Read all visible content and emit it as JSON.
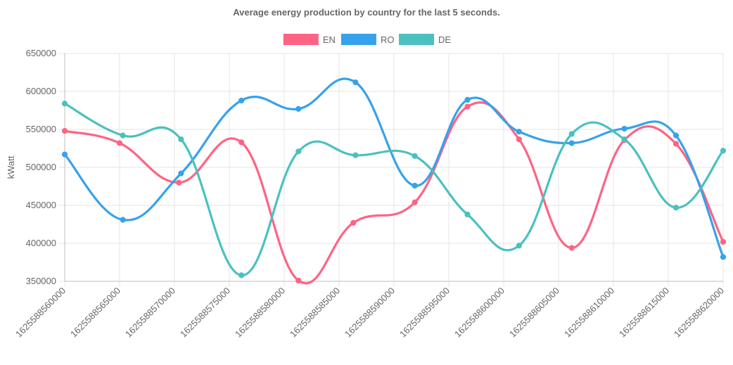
{
  "chart_data": {
    "type": "line",
    "title": "Average energy production by country for the last 5 seconds.",
    "xlabel": "",
    "ylabel": "kWatt",
    "x": [
      1625588560000,
      1625588565000,
      1625588570000,
      1625588575000,
      1625588580000,
      1625588585000,
      1625588590000,
      1625588595000,
      1625588600000,
      1625588605000,
      1625588610000,
      1625588615000,
      1625588620000
    ],
    "x_tick_labels": [
      "1625588560000",
      "1625588565000",
      "1625588570000",
      "1625588575000",
      "1625588580000",
      "1625588585000",
      "1625588590000",
      "1625588595000",
      "1625588600000",
      "1625588605000",
      "1625588610000",
      "1625588615000",
      "1625588620000"
    ],
    "xlim": [
      1625588560000,
      1625588620000
    ],
    "ylim": [
      350000,
      650000
    ],
    "y_ticks": [
      350000,
      400000,
      450000,
      500000,
      550000,
      600000,
      650000
    ],
    "y_tick_labels": [
      "350000",
      "400000",
      "450000",
      "500000",
      "550000",
      "600000",
      "650000"
    ],
    "grid": true,
    "legend_position": "top",
    "series": [
      {
        "name": "EN",
        "color": "#ff6384",
        "points": [
          [
            1625588560000,
            548000
          ],
          [
            1625588565000,
            532000
          ],
          [
            1625588570400,
            480000
          ],
          [
            1625588576100,
            533000
          ],
          [
            1625588581300,
            351000
          ],
          [
            1625588586300,
            427000
          ],
          [
            1625588591900,
            454000
          ],
          [
            1625588596700,
            580000
          ],
          [
            1625588601400,
            537000
          ],
          [
            1625588606200,
            394000
          ],
          [
            1625588611000,
            536000
          ],
          [
            1625588615700,
            531000
          ],
          [
            1625588620000,
            402000
          ]
        ]
      },
      {
        "name": "RO",
        "color": "#36a2eb",
        "points": [
          [
            1625588560000,
            517000
          ],
          [
            1625588565300,
            431000
          ],
          [
            1625588570600,
            492000
          ],
          [
            1625588576100,
            588000
          ],
          [
            1625588581300,
            577000
          ],
          [
            1625588586500,
            612000
          ],
          [
            1625588591900,
            476000
          ],
          [
            1625588596700,
            589000
          ],
          [
            1625588601400,
            547000
          ],
          [
            1625588606200,
            532000
          ],
          [
            1625588611000,
            551000
          ],
          [
            1625588615700,
            542000
          ],
          [
            1625588620000,
            382000
          ]
        ]
      },
      {
        "name": "DE",
        "color": "#4bc0c0",
        "points": [
          [
            1625588560000,
            584000
          ],
          [
            1625588565300,
            542000
          ],
          [
            1625588570600,
            537000
          ],
          [
            1625588576100,
            358000
          ],
          [
            1625588581300,
            521000
          ],
          [
            1625588586500,
            516000
          ],
          [
            1625588591900,
            515000
          ],
          [
            1625588596700,
            438000
          ],
          [
            1625588601400,
            397000
          ],
          [
            1625588606200,
            544000
          ],
          [
            1625588611000,
            537000
          ],
          [
            1625588615700,
            447000
          ],
          [
            1625588620000,
            522000
          ]
        ]
      }
    ]
  }
}
